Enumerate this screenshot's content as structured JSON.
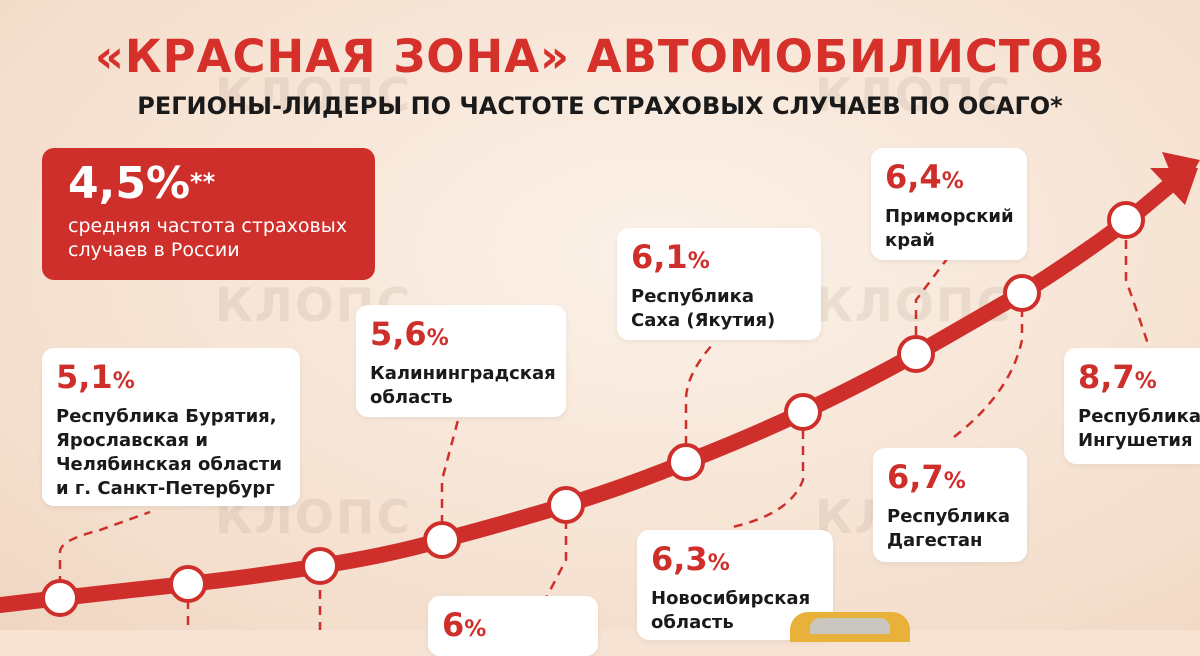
{
  "title": "«КРАСНАЯ ЗОНА» АВТОМОБИЛИСТОВ",
  "subtitle": "РЕГИОНЫ-ЛИДЕРЫ ПО ЧАСТОТЕ СТРАХОВЫХ СЛУЧАЕВ ПО ОСАГО*",
  "watermark": "КЛОПС",
  "average": {
    "value": "4,5%",
    "mark": "**",
    "text": "средняя частота страховых случаев в России"
  },
  "colors": {
    "accent": "#cf2f2b",
    "text": "#1a1a1a",
    "card": "#ffffff"
  },
  "cards": [
    {
      "value": "5,1",
      "unit": "%",
      "label": "Республика Бурятия, Ярославская и Челябинская области и г. Санкт-Петербург"
    },
    {
      "value": "5,6",
      "unit": "%",
      "label": "Калининградская область"
    },
    {
      "value": "6",
      "unit": "%",
      "label": ""
    },
    {
      "value": "6,1",
      "unit": "%",
      "label": "Республика Саха (Якутия)"
    },
    {
      "value": "6,3",
      "unit": "%",
      "label": "Новосибирская область"
    },
    {
      "value": "6,4",
      "unit": "%",
      "label": "Приморский край"
    },
    {
      "value": "6,7",
      "unit": "%",
      "label": "Республика Дагестан"
    },
    {
      "value": "8,7",
      "unit": "%",
      "label": "Республика Ингушетия"
    }
  ]
}
